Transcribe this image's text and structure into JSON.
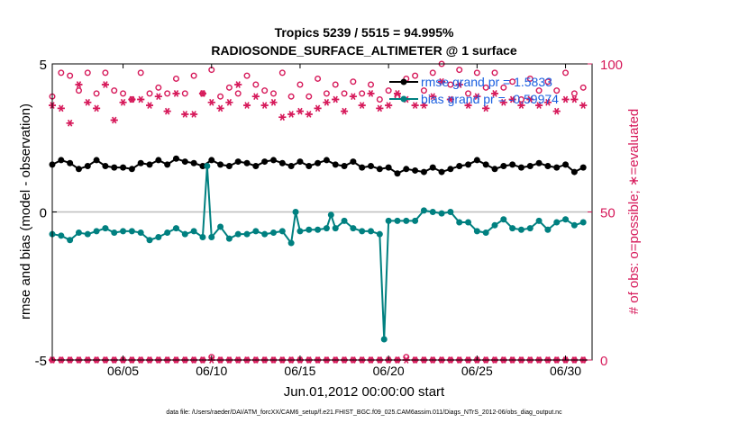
{
  "chart_data": {
    "type": "line",
    "title": "Tropics 5239 / 5515 = 94.995%",
    "subtitle": "RADIOSONDE_SURFACE_ALTIMETER @ 1 surface",
    "xlabel": "Jun.01,2012 00:00:00 start",
    "ylabel": "rmse and bias (model - observation)",
    "ylabel_right": "# of obs: o=possible; ∗=evaluated",
    "footer": "data file: /Users/raeder/DAI/ATM_forcXX/CAM6_setup/f.e21.FHIST_BGC.f09_025.CAM6assim.011/Diags_NTrS_2012-06/obs_diag_output.nc",
    "xlim": [
      1,
      31.5
    ],
    "ylim": [
      -5,
      5
    ],
    "ylim_right": [
      0,
      100
    ],
    "x_ticks": [
      5,
      10,
      15,
      20,
      25,
      30
    ],
    "x_tick_labels": [
      "06/05",
      "06/10",
      "06/15",
      "06/20",
      "06/25",
      "06/30"
    ],
    "y_ticks": [
      -5,
      0,
      5
    ],
    "y_tick_labels": [
      "-5",
      "0",
      "5"
    ],
    "y_ticks_right": [
      0,
      50,
      100
    ],
    "y_tick_labels_right": [
      "0",
      "50",
      "100"
    ],
    "zero_line": 0,
    "legend": {
      "position": "top-right",
      "entries": [
        "rmse grand pr = 1.5833",
        "bias grand pr = -0.59974"
      ]
    },
    "colors": {
      "rmse": "#000000",
      "bias": "#008080",
      "obs": "#d6195a",
      "legend_text": "#1a5fe0"
    },
    "series": [
      {
        "name": "rmse grand pr = 1.5833",
        "axis": "left",
        "style": "line+dot",
        "x": [
          1.0,
          1.5,
          2.0,
          2.5,
          3.0,
          3.5,
          4.0,
          4.5,
          5.0,
          5.5,
          6.0,
          6.5,
          7.0,
          7.5,
          8.0,
          8.5,
          9.0,
          9.5,
          10.0,
          10.5,
          11.0,
          11.5,
          12.0,
          12.5,
          13.0,
          13.5,
          14.0,
          14.5,
          15.0,
          15.5,
          16.0,
          16.5,
          17.0,
          17.5,
          18.0,
          18.5,
          19.0,
          19.5,
          20.0,
          20.5,
          21.0,
          21.5,
          22.0,
          22.5,
          23.0,
          23.5,
          24.0,
          24.5,
          25.0,
          25.5,
          26.0,
          26.5,
          27.0,
          27.5,
          28.0,
          28.5,
          29.0,
          29.5,
          30.0,
          30.5,
          31.0
        ],
        "values": [
          1.6,
          1.75,
          1.65,
          1.45,
          1.55,
          1.75,
          1.55,
          1.5,
          1.5,
          1.45,
          1.65,
          1.6,
          1.75,
          1.6,
          1.8,
          1.7,
          1.65,
          1.55,
          1.75,
          1.6,
          1.55,
          1.7,
          1.65,
          1.55,
          1.7,
          1.75,
          1.65,
          1.55,
          1.7,
          1.55,
          1.65,
          1.75,
          1.6,
          1.55,
          1.7,
          1.5,
          1.55,
          1.45,
          1.5,
          1.3,
          1.45,
          1.4,
          1.35,
          1.5,
          1.35,
          1.45,
          1.55,
          1.6,
          1.75,
          1.6,
          1.45,
          1.55,
          1.6,
          1.5,
          1.55,
          1.65,
          1.55,
          1.5,
          1.6,
          1.35,
          1.5
        ]
      },
      {
        "name": "bias grand pr = -0.59974",
        "axis": "left",
        "style": "line+dot",
        "x": [
          1.0,
          1.5,
          2.0,
          2.5,
          3.0,
          3.5,
          4.0,
          4.5,
          5.0,
          5.5,
          6.0,
          6.5,
          7.0,
          7.5,
          8.0,
          8.5,
          9.0,
          9.5,
          9.75,
          10.0,
          10.5,
          11.0,
          11.5,
          12.0,
          12.5,
          13.0,
          13.5,
          14.0,
          14.5,
          14.75,
          15.0,
          15.5,
          16.0,
          16.5,
          16.75,
          17.0,
          17.5,
          18.0,
          18.5,
          19.0,
          19.5,
          19.75,
          20.0,
          20.5,
          21.0,
          21.5,
          22.0,
          22.5,
          23.0,
          23.5,
          24.0,
          24.5,
          25.0,
          25.5,
          26.0,
          26.5,
          27.0,
          27.5,
          28.0,
          28.5,
          29.0,
          29.5,
          30.0,
          30.5,
          31.0
        ],
        "values": [
          -0.75,
          -0.8,
          -0.95,
          -0.7,
          -0.75,
          -0.65,
          -0.55,
          -0.7,
          -0.65,
          -0.65,
          -0.7,
          -0.95,
          -0.85,
          -0.7,
          -0.55,
          -0.75,
          -0.65,
          -0.85,
          1.55,
          -0.85,
          -0.5,
          -0.9,
          -0.75,
          -0.75,
          -0.65,
          -0.75,
          -0.7,
          -0.65,
          -1.05,
          0.0,
          -0.65,
          -0.6,
          -0.6,
          -0.55,
          -0.1,
          -0.55,
          -0.3,
          -0.55,
          -0.65,
          -0.65,
          -0.75,
          -4.3,
          -0.3,
          -0.3,
          -0.3,
          -0.3,
          0.05,
          0.0,
          -0.05,
          0.0,
          -0.35,
          -0.35,
          -0.65,
          -0.7,
          -0.45,
          -0.25,
          -0.55,
          -0.6,
          -0.55,
          -0.3,
          -0.6,
          -0.35,
          -0.25,
          -0.45,
          -0.35
        ]
      },
      {
        "name": "obs possible",
        "axis": "right",
        "style": "open-circle",
        "x": [
          1.0,
          1.5,
          2.0,
          2.5,
          3.0,
          3.5,
          4.0,
          4.5,
          5.0,
          5.5,
          6.0,
          6.5,
          7.0,
          7.5,
          8.0,
          8.5,
          9.0,
          9.5,
          10.0,
          10.5,
          11.0,
          11.5,
          12.0,
          12.5,
          13.0,
          13.5,
          14.0,
          14.5,
          15.0,
          15.5,
          16.0,
          16.5,
          17.0,
          17.5,
          18.0,
          18.5,
          19.0,
          19.5,
          20.0,
          20.5,
          21.0,
          21.5,
          22.0,
          22.5,
          23.0,
          23.5,
          24.0,
          24.5,
          25.0,
          25.5,
          26.0,
          26.5,
          27.0,
          27.5,
          28.0,
          28.5,
          29.0,
          29.5,
          30.0,
          30.5,
          31.0
        ],
        "values": [
          89,
          97,
          96,
          91,
          97,
          90,
          97,
          91,
          90,
          88,
          97,
          90,
          92,
          90,
          95,
          90,
          96,
          90,
          98,
          89,
          92,
          90,
          96,
          93,
          91,
          90,
          97,
          89,
          93,
          89,
          95,
          90,
          93,
          90,
          94,
          90,
          93,
          88,
          91,
          89,
          95,
          96,
          91,
          97,
          100,
          93,
          98,
          90,
          97,
          92,
          97,
          92,
          94,
          88,
          95,
          91,
          94,
          91,
          97,
          90,
          92
        ]
      },
      {
        "name": "obs evaluated",
        "axis": "right",
        "style": "asterisk",
        "x": [
          1.0,
          1.5,
          2.0,
          2.5,
          3.0,
          3.5,
          4.0,
          4.5,
          5.0,
          5.5,
          6.0,
          6.5,
          7.0,
          7.5,
          8.0,
          8.5,
          9.0,
          9.5,
          10.0,
          10.5,
          11.0,
          11.5,
          12.0,
          12.5,
          13.0,
          13.5,
          14.0,
          14.5,
          15.0,
          15.5,
          16.0,
          16.5,
          17.0,
          17.5,
          18.0,
          18.5,
          19.0,
          19.5,
          20.0,
          20.5,
          21.0,
          21.5,
          22.0,
          22.5,
          23.0,
          23.5,
          24.0,
          24.5,
          25.0,
          25.5,
          26.0,
          26.5,
          27.0,
          27.5,
          28.0,
          28.5,
          29.0,
          29.5,
          30.0,
          30.5,
          31.0
        ],
        "values": [
          86,
          85,
          80,
          93,
          87,
          85,
          93,
          81,
          87,
          88,
          88,
          86,
          89,
          84,
          90,
          83,
          83,
          90,
          87,
          85,
          87,
          93,
          86,
          89,
          86,
          87,
          82,
          83,
          84,
          83,
          85,
          87,
          88,
          84,
          89,
          86,
          90,
          85,
          86,
          90,
          88,
          86,
          86,
          89,
          94,
          88,
          93,
          86,
          89,
          85,
          90,
          87,
          88,
          86,
          88,
          86,
          87,
          84,
          88,
          88,
          86
        ]
      },
      {
        "name": "obs near zero possible",
        "axis": "right",
        "style": "open-circle",
        "x": [
          1.0,
          1.5,
          2.0,
          2.5,
          3.0,
          3.5,
          4.0,
          4.5,
          5.0,
          5.5,
          6.0,
          6.5,
          7.0,
          7.5,
          8.0,
          8.5,
          9.0,
          9.5,
          10.0,
          10.5,
          11.0,
          11.5,
          12.0,
          12.5,
          13.0,
          13.5,
          14.0,
          14.5,
          15.0,
          15.5,
          16.0,
          16.5,
          17.0,
          17.5,
          18.0,
          18.5,
          19.0,
          19.5,
          20.0,
          20.5,
          21.0,
          21.5,
          22.0,
          22.5,
          23.0,
          23.5,
          24.0,
          24.5,
          25.0,
          25.5,
          26.0,
          26.5,
          27.0,
          27.5,
          28.0,
          28.5,
          29.0,
          29.5,
          30.0,
          30.5,
          31.0
        ],
        "values": [
          0,
          0,
          0,
          0,
          0,
          0,
          0,
          0,
          0,
          0,
          0,
          0,
          0,
          0,
          0,
          0,
          0,
          0,
          1,
          0,
          0,
          0,
          0,
          0,
          0,
          0,
          0,
          0,
          0,
          0,
          0,
          0,
          0,
          0,
          0,
          0,
          0,
          0,
          0,
          0,
          1,
          0,
          0,
          0,
          0,
          0,
          0,
          0,
          0,
          0,
          0,
          0,
          0,
          0,
          0,
          0,
          0,
          0,
          0,
          0,
          0
        ]
      },
      {
        "name": "obs near zero evaluated",
        "axis": "right",
        "style": "asterisk",
        "x": [
          1.0,
          1.5,
          2.0,
          2.5,
          3.0,
          3.5,
          4.0,
          4.5,
          5.0,
          5.5,
          6.0,
          6.5,
          7.0,
          7.5,
          8.0,
          8.5,
          9.0,
          9.5,
          10.0,
          10.5,
          11.0,
          11.5,
          12.0,
          12.5,
          13.0,
          13.5,
          14.0,
          14.5,
          15.0,
          15.5,
          16.0,
          16.5,
          17.0,
          17.5,
          18.0,
          18.5,
          19.0,
          19.5,
          20.0,
          20.5,
          21.0,
          21.5,
          22.0,
          22.5,
          23.0,
          23.5,
          24.0,
          24.5,
          25.0,
          25.5,
          26.0,
          26.5,
          27.0,
          27.5,
          28.0,
          28.5,
          29.0,
          29.5,
          30.0,
          30.5,
          31.0
        ],
        "values": [
          0,
          0,
          0,
          0,
          0,
          0,
          0,
          0,
          0,
          0,
          0,
          0,
          0,
          0,
          0,
          0,
          0,
          0,
          0,
          0,
          0,
          0,
          0,
          0,
          0,
          0,
          0,
          0,
          0,
          0,
          0,
          0,
          0,
          0,
          0,
          0,
          0,
          0,
          0,
          0,
          0,
          0,
          0,
          0,
          0,
          0,
          0,
          0,
          0,
          0,
          0,
          0,
          0,
          0,
          0,
          0,
          0,
          0,
          0,
          0,
          0
        ]
      }
    ]
  }
}
